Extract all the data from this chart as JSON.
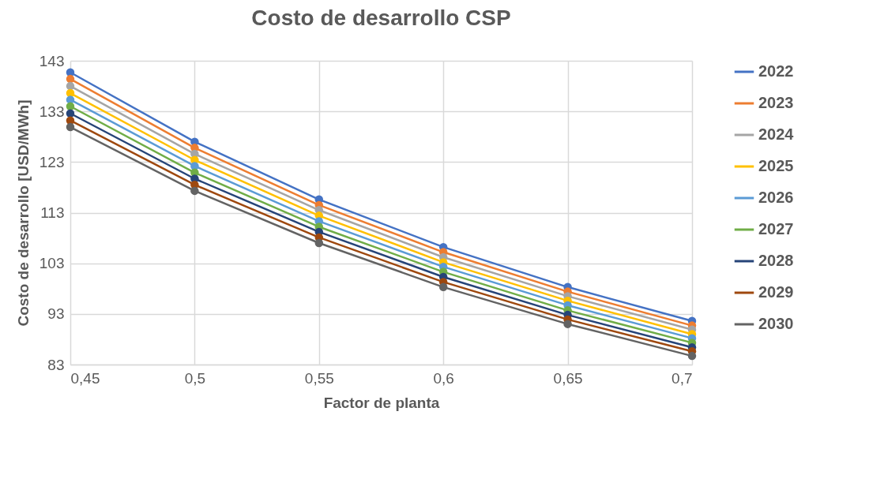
{
  "chart_data": {
    "type": "line",
    "title": "Costo de desarrollo CSP",
    "xlabel": "Factor de planta",
    "ylabel": "Costo de desarrollo [USD/MWh]",
    "x": [
      0.45,
      0.5,
      0.55,
      0.6,
      0.65,
      0.7
    ],
    "xlim": [
      0.45,
      0.7
    ],
    "xticks": [
      {
        "value": 0.45,
        "label": "0,45"
      },
      {
        "value": 0.5,
        "label": "0,5"
      },
      {
        "value": 0.55,
        "label": "0,55"
      },
      {
        "value": 0.6,
        "label": "0,6"
      },
      {
        "value": 0.65,
        "label": "0,65"
      },
      {
        "value": 0.7,
        "label": "0,7"
      }
    ],
    "ylim": [
      83,
      143
    ],
    "yticks": [
      83,
      93,
      103,
      113,
      123,
      133,
      143
    ],
    "grid": true,
    "legend": "right",
    "marker": "circle",
    "line_style": "solid",
    "series": [
      {
        "name": "2022",
        "color": "#4472c4",
        "values": [
          140.7,
          127.0,
          115.6,
          106.2,
          98.3,
          91.6
        ]
      },
      {
        "name": "2023",
        "color": "#ed7d31",
        "values": [
          139.4,
          125.8,
          114.5,
          105.2,
          97.4,
          90.7
        ]
      },
      {
        "name": "2024",
        "color": "#a5a5a5",
        "values": [
          138.0,
          124.6,
          113.5,
          104.2,
          96.5,
          89.9
        ]
      },
      {
        "name": "2025",
        "color": "#ffc000",
        "values": [
          136.6,
          123.4,
          112.4,
          103.2,
          95.6,
          89.0
        ]
      },
      {
        "name": "2026",
        "color": "#5b9bd5",
        "values": [
          135.3,
          122.2,
          111.3,
          102.3,
          94.7,
          88.2
        ]
      },
      {
        "name": "2027",
        "color": "#70ad47",
        "values": [
          134.0,
          120.9,
          110.2,
          101.3,
          93.7,
          87.3
        ]
      },
      {
        "name": "2028",
        "color": "#264478",
        "values": [
          132.6,
          119.7,
          109.2,
          100.3,
          92.8,
          86.4
        ]
      },
      {
        "name": "2029",
        "color": "#9e480e",
        "values": [
          131.2,
          118.5,
          108.1,
          99.3,
          91.9,
          85.6
        ]
      },
      {
        "name": "2030",
        "color": "#636363",
        "values": [
          129.9,
          117.3,
          107.0,
          98.3,
          91.0,
          84.7
        ]
      }
    ]
  }
}
